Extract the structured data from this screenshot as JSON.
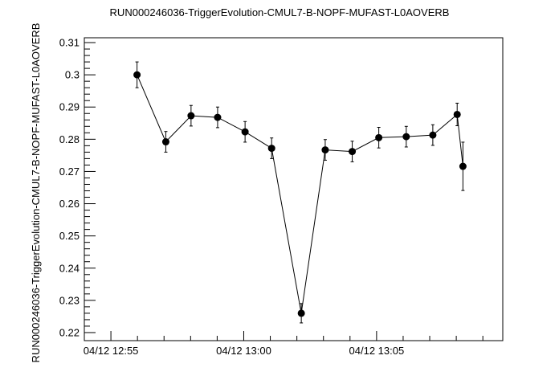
{
  "chart_data": {
    "type": "line",
    "title": "RUN000246036-TriggerEvolution-CMUL7-B-NOPF-MUFAST-L0AOVERB",
    "xlabel": "",
    "ylabel": "RUN000246036-TriggerEvolution-CMUL7-B-NOPF-MUFAST-L0AOVERB",
    "xlim": [
      "04/12 12:54:00",
      "04/12 13:09:45"
    ],
    "ylim": [
      0.2175,
      0.3115
    ],
    "x_tick_labels": [
      "04/12 12:55",
      "04/12 13:00",
      "04/12 13:05"
    ],
    "y_tick_labels": [
      "0.22",
      "0.23",
      "0.24",
      "0.25",
      "0.26",
      "0.27",
      "0.28",
      "0.29",
      "0.3",
      "0.31"
    ],
    "grid": false,
    "series": [
      {
        "x": [
          "04/12 12:55:59",
          "04/12 12:57:04",
          "04/12 12:58:01",
          "04/12 12:59:01",
          "04/12 13:00:03",
          "04/12 13:01:03",
          "04/12 13:02:10",
          "04/12 13:03:04",
          "04/12 13:04:05",
          "04/12 13:05:05",
          "04/12 13:06:07",
          "04/12 13:07:07",
          "04/12 13:08:02",
          "04/12 13:08:15"
        ],
        "values": [
          0.3,
          0.2792,
          0.2873,
          0.2868,
          0.2823,
          0.2772,
          0.226,
          0.2767,
          0.2762,
          0.2805,
          0.2808,
          0.2813,
          0.2877,
          0.2716
        ],
        "errors": [
          0.004,
          0.0032,
          0.0032,
          0.0032,
          0.0032,
          0.0032,
          0.003,
          0.0032,
          0.0032,
          0.0032,
          0.0032,
          0.0032,
          0.0035,
          0.0075
        ]
      }
    ]
  }
}
